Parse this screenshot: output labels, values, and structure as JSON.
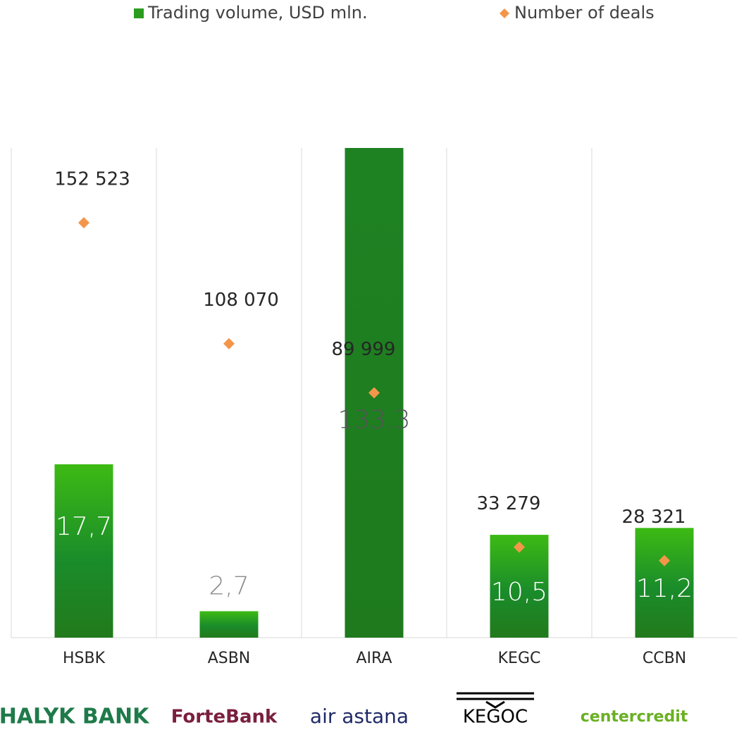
{
  "chart_data": {
    "type": "bar",
    "categories": [
      "HSBK",
      "ASBN",
      "AIRA",
      "KEGC",
      "CCBN"
    ],
    "series": [
      {
        "name": "Trading volume, USD mln.",
        "color": "#2a9d1e",
        "values": [
          17.7,
          2.7,
          133.3,
          10.5,
          11.2
        ],
        "value_labels": [
          "17,7",
          "2,7",
          "133.3",
          "10,5",
          "11,2"
        ]
      },
      {
        "name": "Number of deals",
        "color": "#f4964a",
        "axis": "y2",
        "type": "scatter",
        "values": [
          152523,
          108070,
          89999,
          33279,
          28321
        ],
        "value_labels": [
          "152 523",
          "108 070",
          "89 999",
          "33 279",
          "28 321"
        ]
      }
    ],
    "ylim": [
      0,
      50
    ],
    "y2lim": [
      0,
      180000
    ],
    "logos": [
      "HALYK BANK",
      "ForteBank",
      "air astana",
      "KEGOC",
      "centercredit"
    ]
  }
}
